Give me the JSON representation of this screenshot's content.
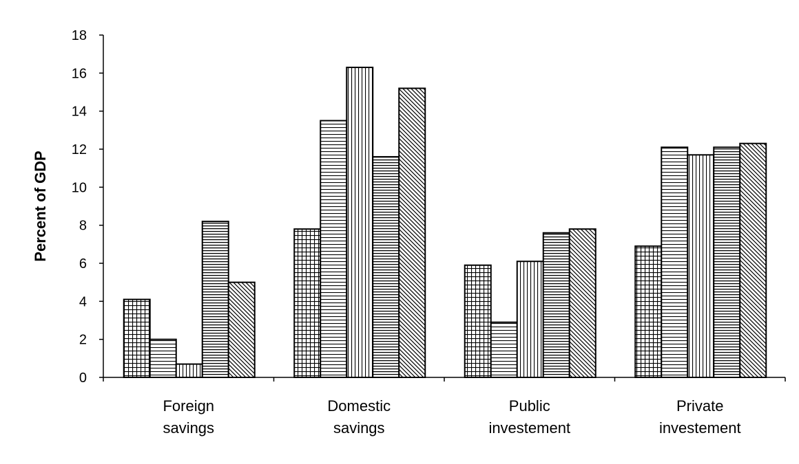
{
  "chart_data": {
    "type": "bar",
    "title": "",
    "xlabel": "",
    "ylabel": "Percent of GDP",
    "ylim": [
      0,
      18
    ],
    "yticks": [
      "0",
      "2",
      "4",
      "6",
      "8",
      "10",
      "12",
      "14",
      "16",
      "18"
    ],
    "categories": [
      [
        "Foreign",
        "savings"
      ],
      [
        "Domestic",
        "savings"
      ],
      [
        "Public",
        "investement"
      ],
      [
        "Private",
        "investement"
      ]
    ],
    "grid": false,
    "legend": "none",
    "bar_color": "#000000",
    "series": [
      {
        "pattern": "grid",
        "values": [
          4.1,
          7.8,
          5.9,
          6.9
        ]
      },
      {
        "pattern": "horizontal",
        "values": [
          2.0,
          13.5,
          2.9,
          12.1
        ]
      },
      {
        "pattern": "vertical",
        "values": [
          0.7,
          16.3,
          6.1,
          11.7
        ]
      },
      {
        "pattern": "horizontal-dense",
        "values": [
          8.2,
          11.6,
          7.6,
          12.1
        ]
      },
      {
        "pattern": "diagonal",
        "values": [
          5.0,
          15.2,
          7.8,
          12.3
        ]
      }
    ]
  }
}
